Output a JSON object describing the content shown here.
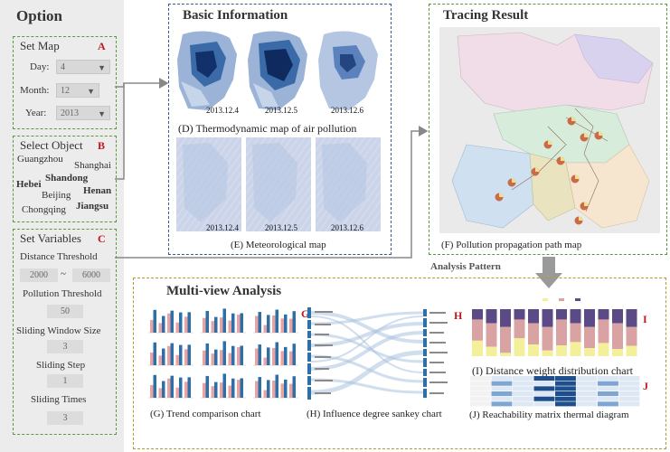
{
  "option": {
    "title": "Option",
    "set_map": {
      "title": "Set Map",
      "letter": "A",
      "day_label": "Day:",
      "day_value": "4",
      "month_label": "Month:",
      "month_value": "12",
      "year_label": "Year:",
      "year_value": "2013"
    },
    "select_object": {
      "title": "Select Object",
      "letter": "B",
      "cities": [
        "Guangzhou",
        "Shanghai",
        "Hebei",
        "Shandong",
        "Henan",
        "Beijing",
        "Chongqing",
        "Jiangsu"
      ]
    },
    "set_variables": {
      "title": "Set Variables",
      "letter": "C",
      "distance_label": "Distance Threshold",
      "distance_min": "2000",
      "distance_sep": "~",
      "distance_max": "6000",
      "pollution_label": "Pollution Threshold",
      "pollution_value": "50",
      "window_label": "Sliding Window Size",
      "window_value": "3",
      "step_label": "Sliding Step",
      "step_value": "1",
      "times_label": "Sliding Times",
      "times_value": "3"
    }
  },
  "basic": {
    "title": "Basic Information",
    "letter_d": "D",
    "letter_e": "E",
    "dates": [
      "2013.12.4",
      "2013.12.5",
      "2013.12.6"
    ],
    "caption_d": "(D) Thermodynamic map of air pollution",
    "caption_e": "(E) Meteorological map"
  },
  "tracing": {
    "title": "Tracing Result",
    "letter": "F",
    "caption": "(F) Pollution propagation path map"
  },
  "analysis_pattern": "Analysis Pattern",
  "multiview": {
    "title": "Multi-view Analysis",
    "letter_g": "G",
    "letter_h": "H",
    "letter_i": "I",
    "letter_j": "J",
    "caption_g": "(G) Trend comparison chart",
    "caption_h": "(H) Influence degree sankey chart",
    "caption_i": "(I) Distance weight distribution chart",
    "caption_j": "(J) Reachability matrix thermal diagram"
  },
  "colors": {
    "accent_red": "#c0161d",
    "green_dash": "#5a9a3a",
    "blue_dash": "#3b5998",
    "gold_dash": "#b59b2a",
    "bar_blue": "#2e6fa8",
    "bar_pink": "#e8a3a3",
    "stack_purple": "#5b4a86",
    "stack_rose": "#d9a3a3",
    "stack_yellow": "#f3ef9a"
  }
}
